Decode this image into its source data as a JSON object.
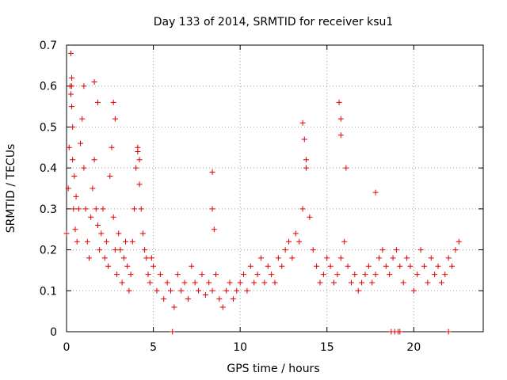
{
  "chart_data": {
    "type": "scatter",
    "title": "Day 133 of 2014, SRMTID for receiver ksu1",
    "xlabel": "GPS time / hours",
    "ylabel": "SRMTID / TECUs",
    "xlim": [
      0,
      24
    ],
    "ylim": [
      0,
      0.7
    ],
    "xticks": [
      0,
      5,
      10,
      15,
      20
    ],
    "xtick_labels": [
      "0",
      "5",
      "10",
      "15",
      "20"
    ],
    "yticks": [
      0,
      0.1,
      0.2,
      0.3,
      0.4,
      0.5,
      0.6,
      0.7
    ],
    "ytick_labels": [
      "0",
      "0.1",
      "0.2",
      "0.3",
      "0.4",
      "0.5",
      "0.6",
      "0.7"
    ],
    "grid": true,
    "marker": "+",
    "series": [
      {
        "name": "SRMTID",
        "color": "#e00000",
        "x": [
          0.0,
          0.1,
          0.15,
          0.2,
          0.25,
          0.3,
          0.35,
          0.4,
          0.45,
          0.5,
          0.55,
          0.6,
          0.7,
          0.8,
          0.9,
          1.0,
          1.1,
          1.2,
          1.3,
          1.4,
          1.5,
          1.6,
          1.7,
          1.8,
          1.9,
          2.0,
          2.1,
          2.2,
          2.3,
          2.4,
          2.5,
          2.6,
          2.7,
          2.8,
          2.9,
          3.0,
          3.1,
          3.2,
          3.3,
          3.4,
          3.5,
          3.6,
          3.7,
          3.8,
          3.9,
          4.0,
          4.1,
          4.2,
          4.3,
          4.4,
          4.5,
          4.6,
          4.7,
          4.8,
          4.9,
          5.0,
          5.2,
          5.4,
          5.6,
          5.8,
          6.0,
          6.2,
          6.4,
          6.6,
          6.8,
          7.0,
          7.2,
          7.4,
          7.6,
          7.8,
          8.0,
          8.2,
          8.4,
          8.6,
          8.8,
          9.0,
          9.2,
          9.4,
          9.6,
          9.8,
          10.0,
          10.2,
          10.4,
          10.6,
          10.8,
          11.0,
          11.2,
          11.4,
          11.6,
          11.8,
          12.0,
          12.2,
          12.4,
          12.6,
          12.8,
          13.0,
          13.2,
          13.4,
          13.6,
          13.8,
          14.0,
          14.2,
          14.4,
          14.6,
          14.8,
          15.0,
          15.2,
          15.4,
          15.6,
          15.8,
          16.0,
          16.2,
          16.4,
          16.6,
          16.8,
          17.0,
          17.2,
          17.4,
          17.6,
          17.8,
          18.0,
          18.2,
          18.4,
          18.6,
          18.8,
          19.0,
          19.2,
          19.4,
          19.6,
          19.8,
          20.0,
          20.2,
          20.4,
          20.6,
          20.8,
          21.0,
          21.2,
          21.4,
          21.6,
          21.8,
          22.0,
          22.2,
          22.4,
          22.6,
          0.3,
          0.3,
          0.25,
          0.35,
          1.0,
          1.6,
          1.8,
          2.7,
          2.8,
          4.1,
          4.2,
          8.4,
          8.4,
          8.5,
          13.6,
          13.7,
          13.8,
          15.7,
          15.8,
          15.8,
          16.1,
          17.8,
          6.1,
          18.7,
          18.9,
          19.1,
          19.2,
          22.0
        ],
        "values": [
          0.24,
          0.35,
          0.45,
          0.6,
          0.68,
          0.55,
          0.42,
          0.3,
          0.38,
          0.25,
          0.33,
          0.22,
          0.3,
          0.46,
          0.52,
          0.4,
          0.3,
          0.22,
          0.18,
          0.28,
          0.35,
          0.42,
          0.3,
          0.26,
          0.2,
          0.24,
          0.3,
          0.18,
          0.22,
          0.16,
          0.38,
          0.45,
          0.28,
          0.2,
          0.14,
          0.24,
          0.2,
          0.12,
          0.18,
          0.22,
          0.16,
          0.1,
          0.14,
          0.22,
          0.3,
          0.4,
          0.44,
          0.36,
          0.3,
          0.24,
          0.2,
          0.18,
          0.14,
          0.12,
          0.18,
          0.16,
          0.1,
          0.14,
          0.08,
          0.12,
          0.1,
          0.06,
          0.14,
          0.1,
          0.12,
          0.08,
          0.16,
          0.12,
          0.1,
          0.14,
          0.09,
          0.12,
          0.1,
          0.14,
          0.08,
          0.06,
          0.1,
          0.12,
          0.08,
          0.1,
          0.12,
          0.14,
          0.1,
          0.16,
          0.12,
          0.14,
          0.18,
          0.12,
          0.16,
          0.14,
          0.12,
          0.18,
          0.16,
          0.2,
          0.22,
          0.18,
          0.24,
          0.22,
          0.3,
          0.4,
          0.28,
          0.2,
          0.16,
          0.12,
          0.14,
          0.18,
          0.16,
          0.12,
          0.14,
          0.18,
          0.22,
          0.16,
          0.12,
          0.14,
          0.1,
          0.12,
          0.14,
          0.16,
          0.12,
          0.14,
          0.18,
          0.2,
          0.16,
          0.14,
          0.18,
          0.2,
          0.16,
          0.12,
          0.18,
          0.16,
          0.1,
          0.14,
          0.2,
          0.16,
          0.12,
          0.18,
          0.14,
          0.16,
          0.12,
          0.14,
          0.18,
          0.16,
          0.2,
          0.22,
          0.62,
          0.6,
          0.58,
          0.5,
          0.6,
          0.61,
          0.56,
          0.56,
          0.52,
          0.45,
          0.42,
          0.39,
          0.3,
          0.25,
          0.51,
          0.47,
          0.42,
          0.56,
          0.52,
          0.48,
          0.4,
          0.34,
          0.0,
          0.0,
          0.0,
          0.0,
          0.0,
          0.0
        ]
      }
    ]
  }
}
